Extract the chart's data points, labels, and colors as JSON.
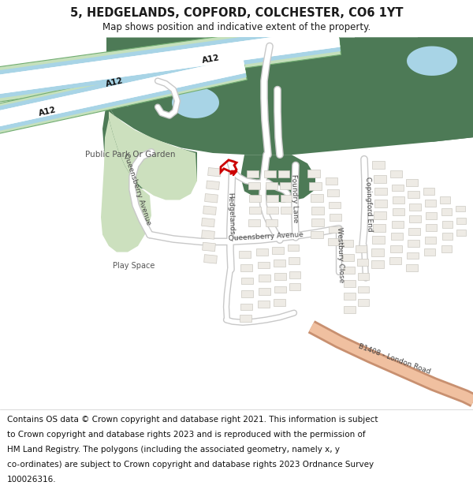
{
  "title": "5, HEDGELANDS, COPFORD, COLCHESTER, CO6 1YT",
  "subtitle": "Map shows position and indicative extent of the property.",
  "footer_lines": [
    "Contains OS data © Crown copyright and database right 2021. This information is subject",
    "to Crown copyright and database rights 2023 and is reproduced with the permission of",
    "HM Land Registry. The polygons (including the associated geometry, namely x, y",
    "co-ordinates) are subject to Crown copyright and database rights 2023 Ordnance Survey",
    "100026316."
  ],
  "title_fontsize": 10.5,
  "subtitle_fontsize": 8.5,
  "footer_fontsize": 7.5,
  "bg_color": "#ffffff",
  "map_bg": "#f5f2ee",
  "dark_green": "#4d7a56",
  "light_green": "#cce0be",
  "water_color": "#a8d4e6",
  "motorway_fill": "#c5e0bc",
  "motorway_border": "#72ad72",
  "motorway_white": "#ffffff",
  "motorway_blue": "#a0c8e0",
  "road_fill": "#ffffff",
  "road_border": "#c8c8c8",
  "building_fill": "#eeebe5",
  "building_border": "#ccc9c2",
  "salmon_fill": "#f0c0a0",
  "salmon_border": "#c89070",
  "plot_red": "#cc0000",
  "text_dark": "#1a1a1a",
  "text_mid": "#444444",
  "figsize": [
    6.0,
    6.25
  ],
  "dpi": 100
}
